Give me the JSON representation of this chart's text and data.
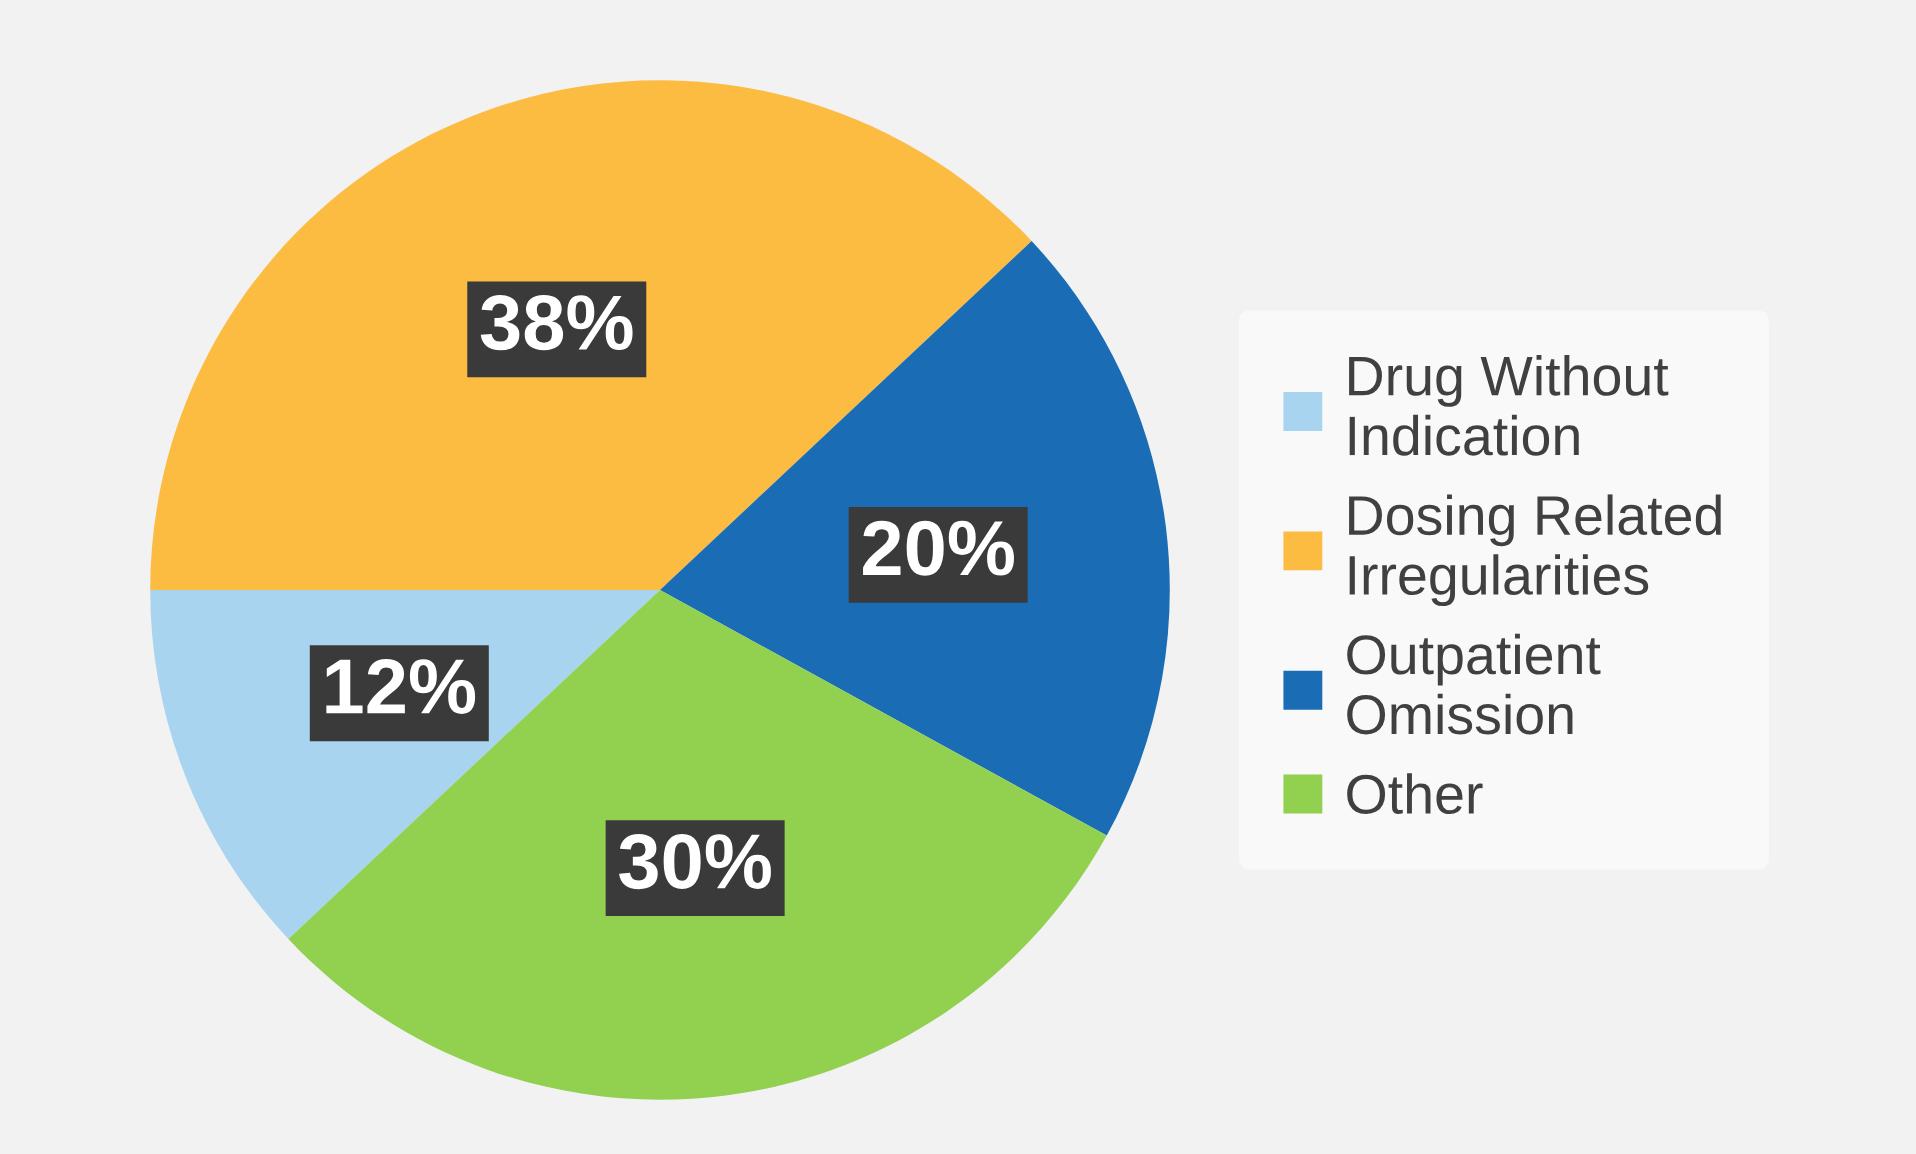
{
  "chart_data": {
    "type": "pie",
    "categories": [
      "Drug Without Indication",
      "Dosing Related Irregularities",
      "Outpatient Omission",
      "Other"
    ],
    "values": [
      12,
      38,
      20,
      30
    ],
    "colors": [
      "#a9d4ef",
      "#fbbc41",
      "#1a6db5",
      "#92d050"
    ],
    "value_labels": [
      "12%",
      "38%",
      "20%",
      "30%"
    ],
    "legend": "right"
  }
}
